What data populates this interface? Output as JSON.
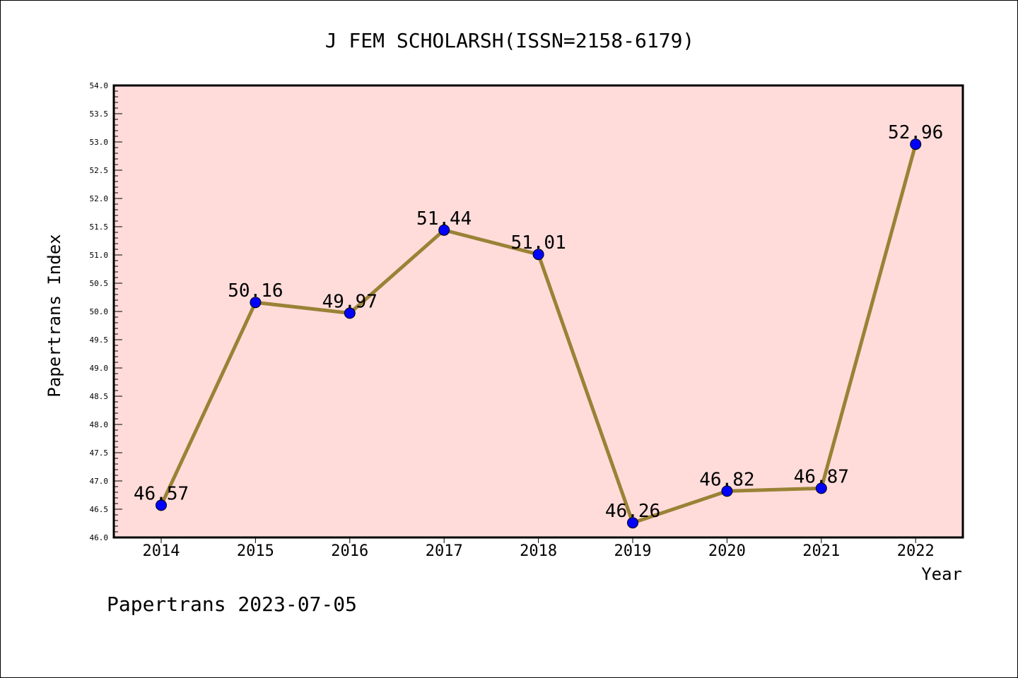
{
  "chart_data": {
    "type": "line",
    "title": "J FEM SCHOLARSH(ISSN=2158-6179)",
    "xlabel": "Year",
    "ylabel": "Papertrans Index",
    "x": [
      "2014",
      "2015",
      "2016",
      "2017",
      "2018",
      "2019",
      "2020",
      "2021",
      "2022"
    ],
    "values": [
      46.57,
      50.16,
      49.97,
      51.44,
      51.01,
      46.26,
      46.82,
      46.87,
      52.96
    ],
    "labels": [
      "46.57",
      "50.16",
      "49.97",
      "51.44",
      "51.01",
      "46.26",
      "46.82",
      "46.87",
      "52.96"
    ],
    "ylim": [
      46.0,
      54.0
    ],
    "yticks": [
      "46.0",
      "46.5",
      "47.0",
      "47.5",
      "48.0",
      "48.5",
      "49.0",
      "49.5",
      "50.0",
      "50.5",
      "51.0",
      "51.5",
      "52.0",
      "52.5",
      "53.0",
      "53.5",
      "54.0"
    ],
    "grid": false,
    "legend": "none",
    "colors": {
      "plot_background": "#ffdcda",
      "line": "#9a8236",
      "marker": "#0000ff"
    }
  },
  "footer": "Papertrans 2023-07-05"
}
